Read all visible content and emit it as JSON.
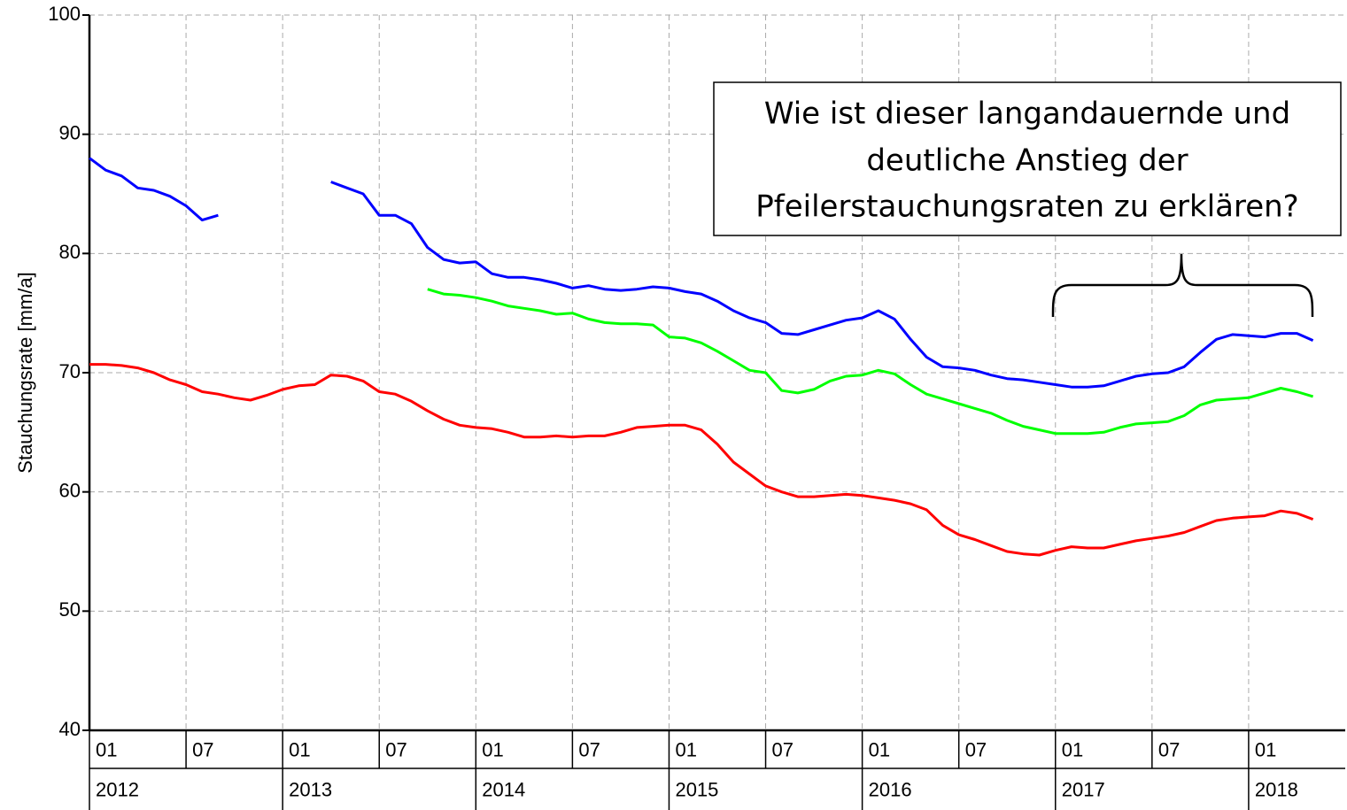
{
  "chart_data": {
    "type": "line",
    "y_label": "Stauchungsrate [mm/a]",
    "annotation": [
      "Wie ist dieser langandauernde und",
      "deutliche Anstieg der",
      "Pfeilerstauchungsraten zu erklären?"
    ],
    "ylim": [
      40,
      100
    ],
    "yticks": [
      40,
      50,
      60,
      70,
      80,
      90,
      100
    ],
    "xlim": [
      "2012-01",
      "2018-07"
    ],
    "xticks": [
      {
        "value": "2012-01",
        "label": "01"
      },
      {
        "value": "2012-07",
        "label": "07"
      },
      {
        "value": "2013-01",
        "label": "01"
      },
      {
        "value": "2013-07",
        "label": "07"
      },
      {
        "value": "2014-01",
        "label": "01"
      },
      {
        "value": "2014-07",
        "label": "07"
      },
      {
        "value": "2015-01",
        "label": "01"
      },
      {
        "value": "2015-07",
        "label": "07"
      },
      {
        "value": "2016-01",
        "label": "01"
      },
      {
        "value": "2016-07",
        "label": "07"
      },
      {
        "value": "2017-01",
        "label": "01"
      },
      {
        "value": "2017-07",
        "label": "07"
      },
      {
        "value": "2018-01",
        "label": "01"
      }
    ],
    "xticks_years": [
      {
        "value": "2012-01",
        "label": "2012"
      },
      {
        "value": "2013-01",
        "label": "2013"
      },
      {
        "value": "2014-01",
        "label": "2014"
      },
      {
        "value": "2015-01",
        "label": "2015"
      },
      {
        "value": "2016-01",
        "label": "2016"
      },
      {
        "value": "2017-01",
        "label": "2017"
      },
      {
        "value": "2018-01",
        "label": "2018"
      }
    ],
    "grid": true,
    "x": [
      "2012-01",
      "2012-02",
      "2012-03",
      "2012-04",
      "2012-05",
      "2012-06",
      "2012-07",
      "2012-08",
      "2012-09",
      "2012-10",
      "2012-11",
      "2012-12",
      "2013-01",
      "2013-02",
      "2013-03",
      "2013-04",
      "2013-05",
      "2013-06",
      "2013-07",
      "2013-08",
      "2013-09",
      "2013-10",
      "2013-11",
      "2013-12",
      "2014-01",
      "2014-02",
      "2014-03",
      "2014-04",
      "2014-05",
      "2014-06",
      "2014-07",
      "2014-08",
      "2014-09",
      "2014-10",
      "2014-11",
      "2014-12",
      "2015-01",
      "2015-02",
      "2015-03",
      "2015-04",
      "2015-05",
      "2015-06",
      "2015-07",
      "2015-08",
      "2015-09",
      "2015-10",
      "2015-11",
      "2015-12",
      "2016-01",
      "2016-02",
      "2016-03",
      "2016-04",
      "2016-05",
      "2016-06",
      "2016-07",
      "2016-08",
      "2016-09",
      "2016-10",
      "2016-11",
      "2016-12",
      "2017-01",
      "2017-02",
      "2017-03",
      "2017-04",
      "2017-05",
      "2017-06",
      "2017-07",
      "2017-08",
      "2017-09",
      "2017-10",
      "2017-11",
      "2017-12",
      "2018-01",
      "2018-02",
      "2018-03",
      "2018-04",
      "2018-05"
    ],
    "series": [
      {
        "color": "#0000ff",
        "values": [
          88,
          87,
          86.5,
          85.5,
          85.3,
          84.8,
          84,
          82.8,
          83.2,
          null,
          null,
          null,
          null,
          null,
          null,
          86,
          85.5,
          85,
          83.2,
          83.2,
          82.5,
          80.5,
          79.5,
          79.2,
          79.3,
          78.3,
          78,
          78,
          77.8,
          77.5,
          77.1,
          77.3,
          77,
          76.9,
          77,
          77.2,
          77.1,
          76.8,
          76.6,
          76,
          75.2,
          74.6,
          74.2,
          73.3,
          73.2,
          73.6,
          74,
          74.4,
          74.6,
          75.2,
          74.5,
          72.8,
          71.3,
          70.5,
          70.4,
          70.2,
          69.8,
          69.5,
          69.4,
          69.2,
          69,
          68.8,
          68.8,
          68.9,
          69.3,
          69.7,
          69.9,
          70,
          70.5,
          71.7,
          72.8,
          73.2,
          73.1,
          73,
          73.3,
          73.3,
          72.7
        ]
      },
      {
        "color": "#00ff00",
        "values": [
          null,
          null,
          null,
          null,
          null,
          null,
          null,
          null,
          null,
          null,
          null,
          null,
          null,
          null,
          null,
          null,
          null,
          null,
          null,
          null,
          null,
          77,
          76.6,
          76.5,
          76.3,
          76,
          75.6,
          75.4,
          75.2,
          74.9,
          75,
          74.5,
          74.2,
          74.1,
          74.1,
          74,
          73,
          72.9,
          72.5,
          71.8,
          71,
          70.2,
          70,
          68.5,
          68.3,
          68.6,
          69.3,
          69.7,
          69.8,
          70.2,
          69.9,
          69,
          68.2,
          67.8,
          67.4,
          67,
          66.6,
          66,
          65.5,
          65.2,
          64.9,
          64.9,
          64.9,
          65,
          65.4,
          65.7,
          65.8,
          65.9,
          66.4,
          67.3,
          67.7,
          67.8,
          67.9,
          68.3,
          68.7,
          68.4,
          68
        ]
      },
      {
        "color": "#ff0000",
        "values": [
          70.7,
          70.7,
          70.6,
          70.4,
          70,
          69.4,
          69,
          68.4,
          68.2,
          67.9,
          67.7,
          68.1,
          68.6,
          68.9,
          69,
          69.8,
          69.7,
          69.3,
          68.4,
          68.2,
          67.6,
          66.8,
          66.1,
          65.6,
          65.4,
          65.3,
          65,
          64.6,
          64.6,
          64.7,
          64.6,
          64.7,
          64.7,
          65,
          65.4,
          65.5,
          65.6,
          65.6,
          65.2,
          64,
          62.5,
          61.5,
          60.5,
          60,
          59.6,
          59.6,
          59.7,
          59.8,
          59.7,
          59.5,
          59.3,
          59,
          58.5,
          57.2,
          56.4,
          56,
          55.5,
          55,
          54.8,
          54.7,
          55.1,
          55.4,
          55.3,
          55.3,
          55.6,
          55.9,
          56.1,
          56.3,
          56.6,
          57.1,
          57.6,
          57.8,
          57.9,
          58,
          58.4,
          58.2,
          57.7
        ]
      }
    ]
  }
}
